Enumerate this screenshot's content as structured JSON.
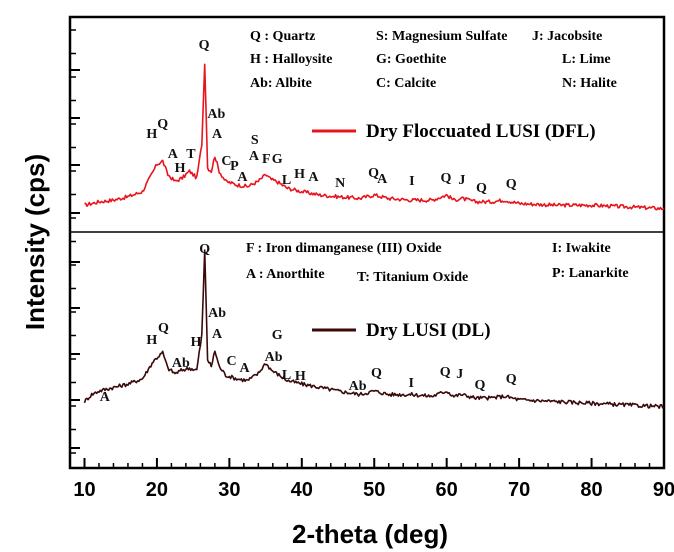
{
  "chart_data": {
    "type": "line",
    "xlabel": "2-theta (deg)",
    "ylabel": "Intensity (cps)",
    "xlim": [
      8,
      90
    ],
    "xticks": [
      "10",
      "20",
      "30",
      "40",
      "50",
      "60",
      "70",
      "80",
      "90"
    ],
    "series_colors": {
      "DFL": "#e8141c",
      "DL": "#3a0a0a"
    },
    "series": [
      {
        "name": "Dry Floccuated LUSI (DFL)",
        "key": "DFL",
        "x": [
          10,
          12,
          14,
          16,
          18,
          19.5,
          20,
          20.8,
          21.5,
          22.5,
          23.5,
          24.5,
          25.5,
          26.2,
          26.6,
          27,
          27.5,
          28,
          28.6,
          29.5,
          31,
          32.5,
          34,
          35,
          35.8,
          36.5,
          38,
          40,
          42.5,
          45,
          48,
          50,
          52,
          55,
          58,
          60,
          61,
          62,
          64,
          66,
          68,
          70,
          75,
          80,
          85,
          90
        ],
        "y": [
          4,
          6,
          7,
          9,
          12,
          24,
          28,
          30,
          22,
          18,
          20,
          24,
          20,
          40,
          88,
          26,
          24,
          33,
          24,
          18,
          16,
          15,
          18,
          22,
          19,
          18,
          14,
          12,
          10,
          9,
          8,
          10,
          8,
          7,
          7,
          10,
          7,
          8,
          6,
          6,
          7,
          5,
          4,
          4,
          3,
          2
        ]
      },
      {
        "name": "Dry LUSI (DL)",
        "key": "DL",
        "x": [
          10,
          11,
          12,
          14,
          16,
          18,
          19.5,
          20,
          20.8,
          21.5,
          22.5,
          23.5,
          24.5,
          25.5,
          26.2,
          26.6,
          27,
          27.5,
          28,
          28.6,
          29.5,
          31,
          32.5,
          34,
          35,
          35.8,
          36.5,
          38,
          40,
          42.5,
          45,
          48,
          50,
          52,
          55,
          58,
          60,
          61,
          62,
          64,
          66,
          68,
          70,
          75,
          80,
          85,
          90
        ],
        "y": [
          6,
          10,
          12,
          14,
          16,
          19,
          29,
          31,
          34,
          25,
          22,
          24,
          25,
          24,
          44,
          92,
          30,
          26,
          35,
          26,
          21,
          19,
          18,
          22,
          28,
          24,
          22,
          18,
          16,
          14,
          12,
          10,
          12,
          10,
          10,
          9,
          12,
          9,
          10,
          8,
          8,
          9,
          7,
          6,
          5,
          4,
          3
        ]
      }
    ],
    "legend": {
      "DFL": "Dry Floccuated LUSI (DFL)",
      "DL": "Dry LUSI (DL)"
    },
    "phase_key_top": [
      "Q  : Quartz",
      "H  : Halloysite",
      "Ab: Albite",
      "S: Magnesium Sulfate",
      "G: Goethite",
      "C: Calcite",
      "J: Jacobsite",
      "L: Lime",
      "N: Halite"
    ],
    "phase_key_bottom": [
      "F  : Iron dimanganese (III) Oxide",
      "A  : Anorthite",
      "T: Titanium Oxide",
      "I: Iwakite",
      "P: Lanarkite"
    ],
    "peak_labels_DFL": [
      {
        "text": "H",
        "x": 19.3
      },
      {
        "text": "Q",
        "x": 20.8
      },
      {
        "text": "A",
        "x": 22.2
      },
      {
        "text": "H",
        "x": 23.2
      },
      {
        "text": "T",
        "x": 24.7
      },
      {
        "text": "Q",
        "x": 26.5
      },
      {
        "text": "Ab",
        "x": 28.2
      },
      {
        "text": "A",
        "x": 28.3
      },
      {
        "text": "C",
        "x": 29.6
      },
      {
        "text": "P",
        "x": 30.7
      },
      {
        "text": "A",
        "x": 31.8
      },
      {
        "text": "S",
        "x": 33.5
      },
      {
        "text": "A",
        "x": 33.4
      },
      {
        "text": "F",
        "x": 35.1
      },
      {
        "text": "G",
        "x": 36.6
      },
      {
        "text": "L",
        "x": 37.9
      },
      {
        "text": "H",
        "x": 39.7
      },
      {
        "text": "A",
        "x": 41.6
      },
      {
        "text": "N",
        "x": 45.3
      },
      {
        "text": "Q",
        "x": 49.9
      },
      {
        "text": "A",
        "x": 51.1
      },
      {
        "text": "I",
        "x": 55.2
      },
      {
        "text": "Q",
        "x": 59.9
      },
      {
        "text": "J",
        "x": 62.1
      },
      {
        "text": "Q",
        "x": 64.8
      },
      {
        "text": "Q",
        "x": 68.9
      }
    ],
    "peak_labels_DL": [
      {
        "text": "A",
        "x": 12.8
      },
      {
        "text": "H",
        "x": 19.3
      },
      {
        "text": "Q",
        "x": 20.9
      },
      {
        "text": "Ab",
        "x": 23.3
      },
      {
        "text": "H",
        "x": 25.4
      },
      {
        "text": "Q",
        "x": 26.6
      },
      {
        "text": "Ab",
        "x": 28.3
      },
      {
        "text": "A",
        "x": 28.3
      },
      {
        "text": "C",
        "x": 30.3
      },
      {
        "text": "A",
        "x": 32.1
      },
      {
        "text": "G",
        "x": 36.6
      },
      {
        "text": "Ab",
        "x": 36.1
      },
      {
        "text": "L",
        "x": 37.9
      },
      {
        "text": "H",
        "x": 39.8
      },
      {
        "text": "Ab",
        "x": 47.7
      },
      {
        "text": "Q",
        "x": 50.3
      },
      {
        "text": "I",
        "x": 55.1
      },
      {
        "text": "Q",
        "x": 59.8
      },
      {
        "text": "J",
        "x": 61.8
      },
      {
        "text": "Q",
        "x": 64.6
      },
      {
        "text": "Q",
        "x": 68.9
      }
    ]
  }
}
